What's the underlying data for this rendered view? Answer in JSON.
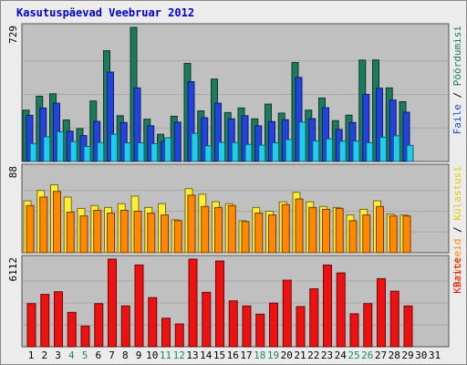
{
  "chart_data": [
    {
      "type": "bar",
      "title": "Kasutuspäevad Veebruar 2012",
      "panel": "top",
      "ymax_label": "729",
      "ylim": [
        0,
        729
      ],
      "categories": [
        "1",
        "2",
        "3",
        "4",
        "5",
        "6",
        "7",
        "8",
        "9",
        "10",
        "11",
        "12",
        "13",
        "14",
        "15",
        "16",
        "17",
        "18",
        "19",
        "20",
        "21",
        "22",
        "23",
        "24",
        "25",
        "26",
        "27",
        "28",
        "29",
        "30",
        "31"
      ],
      "category_colors": {
        "weekday": "#000000",
        "weekend": "#228855"
      },
      "weekend_days": [
        "4",
        "5",
        "11",
        "12",
        "18",
        "19",
        "25",
        "26"
      ],
      "series": [
        {
          "name": "Pöördumisi",
          "color": "#1d7a5f",
          "values": [
            279,
            355,
            368,
            226,
            179,
            329,
            602,
            249,
            729,
            230,
            148,
            246,
            533,
            275,
            448,
            266,
            291,
            232,
            312,
            263,
            538,
            279,
            345,
            222,
            252,
            551,
            552,
            400,
            325,
            0,
            0
          ]
        },
        {
          "name": "Faile",
          "color": "#2244dd",
          "values": [
            251,
            291,
            317,
            165,
            141,
            218,
            486,
            212,
            400,
            194,
            107,
            214,
            434,
            238,
            317,
            232,
            249,
            194,
            217,
            227,
            457,
            233,
            292,
            174,
            212,
            365,
            398,
            334,
            268,
            0,
            0
          ]
        },
        {
          "name": "Külastusi",
          "color": "#22ccee",
          "values": [
            98,
            134,
            162,
            108,
            82,
            103,
            148,
            101,
            102,
            97,
            129,
            0,
            153,
            85,
            104,
            103,
            93,
            89,
            102,
            119,
            214,
            112,
            123,
            110,
            111,
            102,
            132,
            140,
            88,
            0,
            0
          ]
        }
      ]
    },
    {
      "type": "bar",
      "panel": "middle",
      "ymax_label": "88",
      "ylim": [
        0,
        88
      ],
      "categories": [
        "1",
        "2",
        "3",
        "4",
        "5",
        "6",
        "7",
        "8",
        "9",
        "10",
        "11",
        "12",
        "13",
        "14",
        "15",
        "16",
        "17",
        "18",
        "19",
        "20",
        "21",
        "22",
        "23",
        "24",
        "25",
        "26",
        "27",
        "28",
        "29",
        "30",
        "31"
      ],
      "series": [
        {
          "name": "Külastusi",
          "color": "#ffee33",
          "values": [
            55,
            66,
            72,
            59,
            47,
            50,
            48,
            52,
            60,
            48,
            52,
            35,
            68,
            62,
            54,
            52,
            34,
            48,
            44,
            54,
            64,
            54,
            49,
            48,
            40,
            46,
            55,
            41,
            40,
            0,
            0
          ]
        },
        {
          "name": "Arvuteid",
          "color": "#ff8800",
          "values": [
            50,
            59,
            65,
            43,
            39,
            45,
            42,
            45,
            44,
            42,
            40,
            34,
            61,
            49,
            48,
            50,
            33,
            42,
            40,
            51,
            57,
            48,
            46,
            47,
            34,
            40,
            49,
            39,
            39,
            0,
            0
          ]
        }
      ]
    },
    {
      "type": "bar",
      "panel": "bottom",
      "ymax_label": "6112",
      "ylim": [
        0,
        6112
      ],
      "categories": [
        "1",
        "2",
        "3",
        "4",
        "5",
        "6",
        "7",
        "8",
        "9",
        "10",
        "11",
        "12",
        "13",
        "14",
        "15",
        "16",
        "17",
        "18",
        "19",
        "20",
        "21",
        "22",
        "23",
        "24",
        "25",
        "26",
        "27",
        "28",
        "29",
        "30",
        "31"
      ],
      "series": [
        {
          "name": "KBaite",
          "color": "#ee1111",
          "values": [
            3008,
            3653,
            3837,
            2396,
            1446,
            3008,
            6112,
            2846,
            5704,
            3426,
            1990,
            1590,
            6112,
            3798,
            5983,
            3200,
            2846,
            2275,
            3044,
            4643,
            2800,
            4043,
            5700,
            5150,
            2300,
            3008,
            4750,
            3874,
            2846,
            0,
            0
          ]
        }
      ]
    }
  ],
  "right_labels": {
    "top": [
      {
        "text": "Faile",
        "color": "#2244dd"
      },
      {
        "text": " / ",
        "color": "#000000"
      },
      {
        "text": "Pöördumisi",
        "color": "#1d7a5f"
      }
    ],
    "middle": [
      {
        "text": "Arvuteid",
        "color": "#ff8800"
      },
      {
        "text": " / ",
        "color": "#000000"
      },
      {
        "text": "Külastusi",
        "color": "#e8c800"
      }
    ],
    "bottom": [
      {
        "text": "KBaite",
        "color": "#ee1111"
      }
    ]
  },
  "title_color": "#0000cc",
  "panel_bg": "#c0c0c0",
  "page_bg": "#ececec"
}
